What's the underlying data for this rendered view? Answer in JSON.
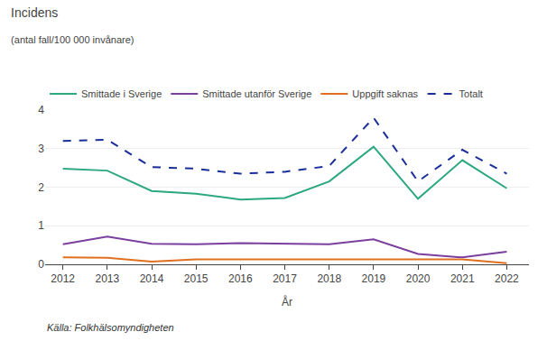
{
  "chart_data": {
    "type": "line",
    "title": "Incidens",
    "subtitle": "(antal fall/100 000 invånare)",
    "x_label": "År",
    "annotations": [
      "Källa: Folkhälsomyndigheten"
    ],
    "x": [
      2012,
      2013,
      2014,
      2015,
      2016,
      2017,
      2018,
      2019,
      2020,
      2021,
      2022
    ],
    "series": [
      {
        "name": "Smittade i Sverige",
        "color": "#2ca87f",
        "line_style": "solid",
        "values": [
          2.48,
          2.43,
          1.9,
          1.83,
          1.68,
          1.72,
          2.15,
          3.05,
          1.7,
          2.7,
          1.97
        ]
      },
      {
        "name": "Smittade utanför Sverige",
        "color": "#7b3f9e",
        "line_style": "solid",
        "values": [
          0.52,
          0.72,
          0.53,
          0.52,
          0.55,
          0.53,
          0.52,
          0.65,
          0.27,
          0.18,
          0.33
        ]
      },
      {
        "name": "Uppgift saknas",
        "color": "#e07020",
        "line_style": "solid",
        "values": [
          0.18,
          0.17,
          0.07,
          0.13,
          0.13,
          0.13,
          0.13,
          0.13,
          0.13,
          0.13,
          0.03
        ]
      },
      {
        "name": "Totalt",
        "color": "#1a2f99",
        "line_style": "dashed",
        "values": [
          3.2,
          3.23,
          2.52,
          2.48,
          2.35,
          2.4,
          2.55,
          3.8,
          2.15,
          2.97,
          2.35
        ]
      }
    ],
    "xlim": [
      2011.6,
      2022.5
    ],
    "xticks": [
      2012,
      2013,
      2014,
      2015,
      2016,
      2017,
      2018,
      2019,
      2020,
      2021,
      2022
    ],
    "ylim": [
      0,
      4
    ],
    "yticks": [
      0,
      1,
      2,
      3,
      4
    ],
    "grid": true,
    "legend": "top"
  }
}
